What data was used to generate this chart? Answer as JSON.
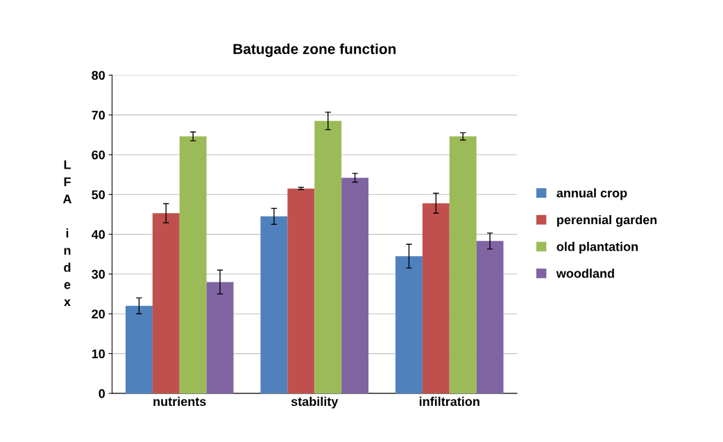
{
  "chart_data": {
    "type": "bar",
    "title": "Batugade zone function",
    "ylabel": "LFA index",
    "categories": [
      "nutrients",
      "stability",
      "infiltration"
    ],
    "series": [
      {
        "name": "annual crop",
        "color": "#4f81bd",
        "values": [
          22,
          44.5,
          34.5
        ],
        "errors": [
          2,
          2,
          3
        ]
      },
      {
        "name": "perennial garden",
        "color": "#c0504d",
        "values": [
          45.3,
          51.5,
          47.8
        ],
        "errors": [
          2.4,
          0.3,
          2.5
        ]
      },
      {
        "name": "old plantation",
        "color": "#9bbb59",
        "values": [
          64.6,
          68.5,
          64.6
        ],
        "errors": [
          1.1,
          2.2,
          0.9
        ]
      },
      {
        "name": "woodland",
        "color": "#8064a2",
        "values": [
          28,
          54.2,
          38.3
        ],
        "errors": [
          3,
          1.1,
          2
        ]
      }
    ],
    "ylim": [
      0,
      80
    ],
    "yticks": [
      0,
      10,
      20,
      30,
      40,
      50,
      60,
      70,
      80
    ],
    "grid": "y",
    "legend": "right"
  }
}
